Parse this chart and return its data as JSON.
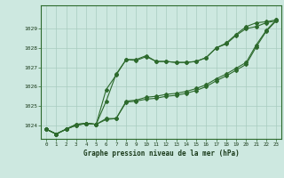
{
  "title": "Graphe pression niveau de la mer (hPa)",
  "bg_color": "#cde8e0",
  "line_color": "#2d6a2d",
  "grid_color": "#a8ccbf",
  "x_ticks": [
    0,
    1,
    2,
    3,
    4,
    5,
    6,
    7,
    8,
    9,
    10,
    11,
    12,
    13,
    14,
    15,
    16,
    17,
    18,
    19,
    20,
    21,
    22,
    23
  ],
  "ylim": [
    1023.3,
    1030.2
  ],
  "yticks": [
    1024,
    1025,
    1026,
    1027,
    1028,
    1029
  ],
  "series": {
    "line1": [
      1023.8,
      1023.55,
      1023.8,
      1024.0,
      1024.1,
      1024.05,
      1024.35,
      1024.35,
      1025.2,
      1025.25,
      1025.35,
      1025.4,
      1025.5,
      1025.55,
      1025.65,
      1025.8,
      1026.0,
      1026.3,
      1026.55,
      1026.85,
      1027.15,
      1028.05,
      1028.85,
      1029.4
    ],
    "line2": [
      1023.8,
      1023.55,
      1023.8,
      1024.0,
      1024.1,
      1024.05,
      1024.3,
      1024.35,
      1025.25,
      1025.3,
      1025.45,
      1025.5,
      1025.6,
      1025.65,
      1025.75,
      1025.9,
      1026.1,
      1026.4,
      1026.65,
      1026.95,
      1027.25,
      1028.15,
      1028.9,
      1029.45
    ],
    "line3": [
      1023.8,
      1023.55,
      1023.8,
      1024.05,
      1024.1,
      1024.05,
      1025.85,
      1026.6,
      1027.4,
      1027.35,
      1027.55,
      1027.3,
      1027.3,
      1027.25,
      1027.25,
      1027.3,
      1027.5,
      1028.0,
      1028.2,
      1028.65,
      1029.0,
      1029.1,
      1029.3,
      1029.4
    ],
    "line4": [
      1023.8,
      1023.55,
      1023.8,
      1024.05,
      1024.1,
      1024.05,
      1025.25,
      1026.65,
      1027.4,
      1027.4,
      1027.6,
      1027.3,
      1027.3,
      1027.25,
      1027.25,
      1027.3,
      1027.5,
      1028.0,
      1028.25,
      1028.7,
      1029.1,
      1029.3,
      1029.35,
      1029.45
    ]
  }
}
